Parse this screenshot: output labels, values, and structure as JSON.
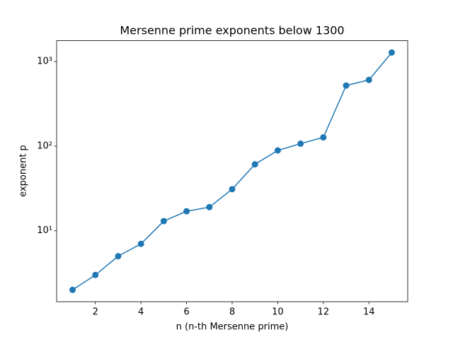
{
  "chart_data": {
    "type": "line",
    "title": "Mersenne prime exponents below 1300",
    "xlabel": "n (n-th Mersenne prime)",
    "ylabel": "exponent p",
    "x": [
      1,
      2,
      3,
      4,
      5,
      6,
      7,
      8,
      9,
      10,
      11,
      12,
      13,
      14,
      15
    ],
    "series": [
      {
        "color": "#1f77b4",
        "values": [
          2,
          3,
          5,
          7,
          13,
          17,
          19,
          31,
          61,
          89,
          107,
          127,
          521,
          607,
          1279
        ]
      }
    ],
    "xlim": [
      0.3,
      15.7
    ],
    "xticks": [
      2,
      4,
      6,
      8,
      10,
      12,
      14
    ],
    "ylim": [
      1.448,
      1766
    ],
    "yscale": "log",
    "yticks": [
      {
        "value": 10,
        "label": "10¹"
      },
      {
        "value": 100,
        "label": "10²"
      },
      {
        "value": 1000,
        "label": "10³"
      }
    ],
    "grid": false
  }
}
